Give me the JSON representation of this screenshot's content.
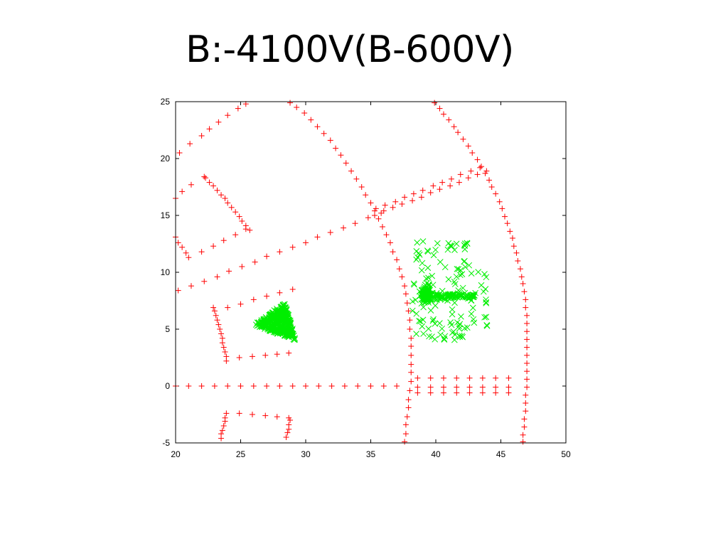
{
  "slide": {
    "title": "B:-4100V(B-600V)"
  },
  "chart_data": {
    "type": "scatter",
    "title": "",
    "xlabel": "",
    "ylabel": "",
    "xlim": [
      20,
      50
    ],
    "ylim": [
      -5,
      25
    ],
    "xticks": [
      20,
      25,
      30,
      35,
      40,
      45,
      50
    ],
    "yticks": [
      -5,
      0,
      5,
      10,
      15,
      20,
      25
    ],
    "grid": false,
    "legend": "none",
    "series": [
      {
        "marker": "plus",
        "color": "#ff0000",
        "points": [
          [
            20.0,
            16.5
          ],
          [
            20.5,
            17.1
          ],
          [
            21.2,
            17.7
          ],
          [
            22.2,
            18.4
          ],
          [
            20.0,
            13.1
          ],
          [
            20.2,
            12.6
          ],
          [
            20.5,
            12.2
          ],
          [
            20.8,
            11.7
          ],
          [
            21.0,
            11.3
          ],
          [
            20.3,
            20.5
          ],
          [
            21.1,
            21.3
          ],
          [
            22.0,
            22.0
          ],
          [
            22.6,
            22.6
          ],
          [
            23.3,
            23.2
          ],
          [
            24.0,
            23.8
          ],
          [
            24.8,
            24.4
          ],
          [
            25.4,
            24.8
          ],
          [
            22.3,
            18.3
          ],
          [
            22.6,
            17.9
          ],
          [
            22.9,
            17.6
          ],
          [
            23.2,
            17.2
          ],
          [
            23.5,
            16.8
          ],
          [
            23.8,
            16.5
          ],
          [
            24.0,
            16.1
          ],
          [
            24.3,
            15.7
          ],
          [
            24.6,
            15.3
          ],
          [
            24.9,
            14.9
          ],
          [
            25.1,
            14.5
          ],
          [
            25.4,
            14.1
          ],
          [
            25.7,
            13.7
          ],
          [
            22.0,
            11.8
          ],
          [
            22.9,
            12.3
          ],
          [
            23.7,
            12.8
          ],
          [
            24.6,
            13.3
          ],
          [
            25.4,
            13.8
          ],
          [
            20.2,
            8.4
          ],
          [
            21.2,
            8.8
          ],
          [
            22.2,
            9.2
          ],
          [
            23.2,
            9.6
          ],
          [
            24.1,
            10.1
          ],
          [
            25.1,
            10.5
          ],
          [
            26.1,
            10.9
          ],
          [
            27.0,
            11.4
          ],
          [
            28.0,
            11.8
          ],
          [
            29.0,
            12.2
          ],
          [
            30.0,
            12.6
          ],
          [
            30.9,
            13.1
          ],
          [
            31.9,
            13.5
          ],
          [
            32.9,
            13.9
          ],
          [
            33.8,
            14.3
          ],
          [
            34.8,
            14.8
          ],
          [
            35.3,
            15.0
          ],
          [
            35.8,
            15.2
          ],
          [
            35.4,
            15.6
          ],
          [
            36.1,
            15.9
          ],
          [
            36.9,
            16.2
          ],
          [
            37.6,
            16.6
          ],
          [
            38.3,
            16.9
          ],
          [
            39.0,
            17.2
          ],
          [
            39.8,
            17.6
          ],
          [
            40.5,
            17.9
          ],
          [
            41.2,
            18.2
          ],
          [
            41.9,
            18.6
          ],
          [
            42.7,
            18.9
          ],
          [
            43.4,
            19.2
          ],
          [
            36.0,
            15.4
          ],
          [
            36.7,
            15.7
          ],
          [
            37.4,
            16.0
          ],
          [
            38.2,
            16.3
          ],
          [
            38.9,
            16.6
          ],
          [
            39.6,
            17.0
          ],
          [
            40.3,
            17.3
          ],
          [
            41.1,
            17.6
          ],
          [
            41.8,
            17.9
          ],
          [
            42.5,
            18.3
          ],
          [
            43.2,
            18.6
          ],
          [
            43.9,
            18.9
          ],
          [
            28.8,
            24.9
          ],
          [
            29.3,
            24.5
          ],
          [
            29.9,
            24.0
          ],
          [
            30.4,
            23.4
          ],
          [
            30.9,
            22.8
          ],
          [
            31.4,
            22.2
          ],
          [
            31.9,
            21.6
          ],
          [
            32.3,
            20.9
          ],
          [
            32.7,
            20.3
          ],
          [
            33.1,
            19.6
          ],
          [
            33.5,
            18.9
          ],
          [
            33.9,
            18.2
          ],
          [
            34.3,
            17.5
          ],
          [
            34.6,
            16.8
          ],
          [
            35.0,
            16.1
          ],
          [
            35.3,
            15.4
          ],
          [
            35.6,
            14.7
          ],
          [
            35.9,
            14.0
          ],
          [
            36.2,
            13.3
          ],
          [
            36.5,
            12.6
          ],
          [
            36.7,
            11.8
          ],
          [
            37.0,
            11.1
          ],
          [
            37.2,
            10.3
          ],
          [
            37.4,
            9.6
          ],
          [
            37.6,
            8.8
          ],
          [
            37.7,
            8.1
          ],
          [
            37.8,
            7.3
          ],
          [
            37.9,
            6.6
          ],
          [
            38.0,
            5.8
          ],
          [
            38.0,
            5.0
          ],
          [
            38.1,
            4.2
          ],
          [
            38.1,
            3.5
          ],
          [
            38.1,
            2.7
          ],
          [
            38.1,
            1.9
          ],
          [
            38.1,
            1.2
          ],
          [
            38.1,
            0.4
          ],
          [
            38.0,
            -0.4
          ],
          [
            37.9,
            -1.2
          ],
          [
            37.9,
            -1.9
          ],
          [
            37.8,
            -2.7
          ],
          [
            37.7,
            -3.4
          ],
          [
            37.7,
            -4.2
          ],
          [
            37.6,
            -4.9
          ],
          [
            39.9,
            24.9
          ],
          [
            40.3,
            24.4
          ],
          [
            40.6,
            23.9
          ],
          [
            41.0,
            23.4
          ],
          [
            41.4,
            22.8
          ],
          [
            41.7,
            22.3
          ],
          [
            42.1,
            21.7
          ],
          [
            42.5,
            21.1
          ],
          [
            42.8,
            20.5
          ],
          [
            43.2,
            19.9
          ],
          [
            43.5,
            19.3
          ],
          [
            43.8,
            18.7
          ],
          [
            44.1,
            18.1
          ],
          [
            44.3,
            17.5
          ],
          [
            44.6,
            16.9
          ],
          [
            44.9,
            16.2
          ],
          [
            45.1,
            15.6
          ],
          [
            45.3,
            14.9
          ],
          [
            45.5,
            14.3
          ],
          [
            45.7,
            13.6
          ],
          [
            45.9,
            13.0
          ],
          [
            46.0,
            12.3
          ],
          [
            46.2,
            11.7
          ],
          [
            46.3,
            11.0
          ],
          [
            46.5,
            10.3
          ],
          [
            46.6,
            9.6
          ],
          [
            46.7,
            9.0
          ],
          [
            46.8,
            8.3
          ],
          [
            46.9,
            7.6
          ],
          [
            46.9,
            6.9
          ],
          [
            47.0,
            6.2
          ],
          [
            47.0,
            5.5
          ],
          [
            47.0,
            4.8
          ],
          [
            47.0,
            4.1
          ],
          [
            47.0,
            3.4
          ],
          [
            47.0,
            2.7
          ],
          [
            47.0,
            2.0
          ],
          [
            47.0,
            1.3
          ],
          [
            47.0,
            0.6
          ],
          [
            47.0,
            -0.1
          ],
          [
            46.9,
            -0.8
          ],
          [
            46.9,
            -1.5
          ],
          [
            46.9,
            -2.2
          ],
          [
            46.8,
            -2.9
          ],
          [
            46.8,
            -3.6
          ],
          [
            46.7,
            -4.3
          ],
          [
            46.7,
            -4.9
          ],
          [
            22.9,
            6.9
          ],
          [
            23.0,
            6.6
          ],
          [
            23.1,
            6.2
          ],
          [
            23.2,
            5.8
          ],
          [
            23.3,
            5.4
          ],
          [
            23.4,
            5.0
          ],
          [
            23.5,
            4.6
          ],
          [
            23.6,
            4.2
          ],
          [
            23.6,
            3.8
          ],
          [
            23.7,
            3.4
          ],
          [
            23.8,
            3.0
          ],
          [
            23.9,
            2.6
          ],
          [
            23.9,
            2.2
          ],
          [
            24.0,
            6.9
          ],
          [
            25.0,
            7.2
          ],
          [
            26.0,
            7.6
          ],
          [
            27.0,
            7.9
          ],
          [
            28.0,
            8.2
          ],
          [
            29.0,
            8.5
          ],
          [
            24.9,
            2.5
          ],
          [
            25.9,
            2.6
          ],
          [
            26.9,
            2.7
          ],
          [
            27.8,
            2.8
          ],
          [
            28.7,
            2.9
          ],
          [
            20.0,
            0.0
          ],
          [
            21.0,
            0.0
          ],
          [
            22.0,
            0.0
          ],
          [
            23.0,
            0.0
          ],
          [
            24.0,
            0.0
          ],
          [
            25.0,
            0.0
          ],
          [
            26.0,
            0.0
          ],
          [
            27.0,
            0.0
          ],
          [
            28.0,
            0.0
          ],
          [
            29.0,
            0.0
          ],
          [
            30.0,
            0.0
          ],
          [
            31.0,
            0.0
          ],
          [
            32.0,
            0.0
          ],
          [
            33.0,
            0.0
          ],
          [
            34.0,
            0.0
          ],
          [
            35.0,
            0.0
          ],
          [
            36.0,
            0.0
          ],
          [
            37.0,
            0.0
          ],
          [
            38.6,
            0.7
          ],
          [
            39.6,
            0.7
          ],
          [
            40.6,
            0.7
          ],
          [
            41.6,
            0.7
          ],
          [
            42.6,
            0.7
          ],
          [
            43.6,
            0.7
          ],
          [
            44.6,
            0.7
          ],
          [
            45.6,
            0.7
          ],
          [
            38.6,
            -0.1
          ],
          [
            39.6,
            -0.1
          ],
          [
            40.6,
            -0.1
          ],
          [
            41.6,
            -0.1
          ],
          [
            42.6,
            -0.1
          ],
          [
            43.6,
            -0.1
          ],
          [
            44.6,
            -0.1
          ],
          [
            45.6,
            -0.1
          ],
          [
            38.6,
            -0.6
          ],
          [
            39.6,
            -0.6
          ],
          [
            40.6,
            -0.6
          ],
          [
            41.6,
            -0.6
          ],
          [
            42.6,
            -0.6
          ],
          [
            43.6,
            -0.6
          ],
          [
            44.6,
            -0.6
          ],
          [
            45.6,
            -0.6
          ],
          [
            23.9,
            -2.4
          ],
          [
            23.8,
            -2.8
          ],
          [
            23.8,
            -3.1
          ],
          [
            23.7,
            -3.5
          ],
          [
            23.6,
            -3.9
          ],
          [
            23.5,
            -4.2
          ],
          [
            23.5,
            -4.6
          ],
          [
            24.9,
            -2.4
          ],
          [
            25.9,
            -2.5
          ],
          [
            26.9,
            -2.6
          ],
          [
            27.8,
            -2.7
          ],
          [
            28.7,
            -2.8
          ],
          [
            28.8,
            -3.0
          ],
          [
            28.7,
            -3.4
          ],
          [
            28.7,
            -3.8
          ],
          [
            28.6,
            -4.1
          ],
          [
            28.5,
            -4.5
          ]
        ]
      },
      {
        "marker": "x",
        "color": "#00ee00",
        "clusters": [
          {
            "center": [
              27.8,
              5.8
            ],
            "shape": "triangle",
            "vertices": [
              [
                25.8,
                5.3
              ],
              [
                28.5,
                7.6
              ],
              [
                29.5,
                3.7
              ]
            ],
            "count": 420,
            "extent_note": "x 25.5-29.9, y 3.3-7.8"
          },
          {
            "center": [
              40.2,
              8.0
            ],
            "shape": "spray",
            "count": 420,
            "extent_note": "x 38.0-44.2, y 3.3-13.0"
          }
        ]
      }
    ]
  }
}
